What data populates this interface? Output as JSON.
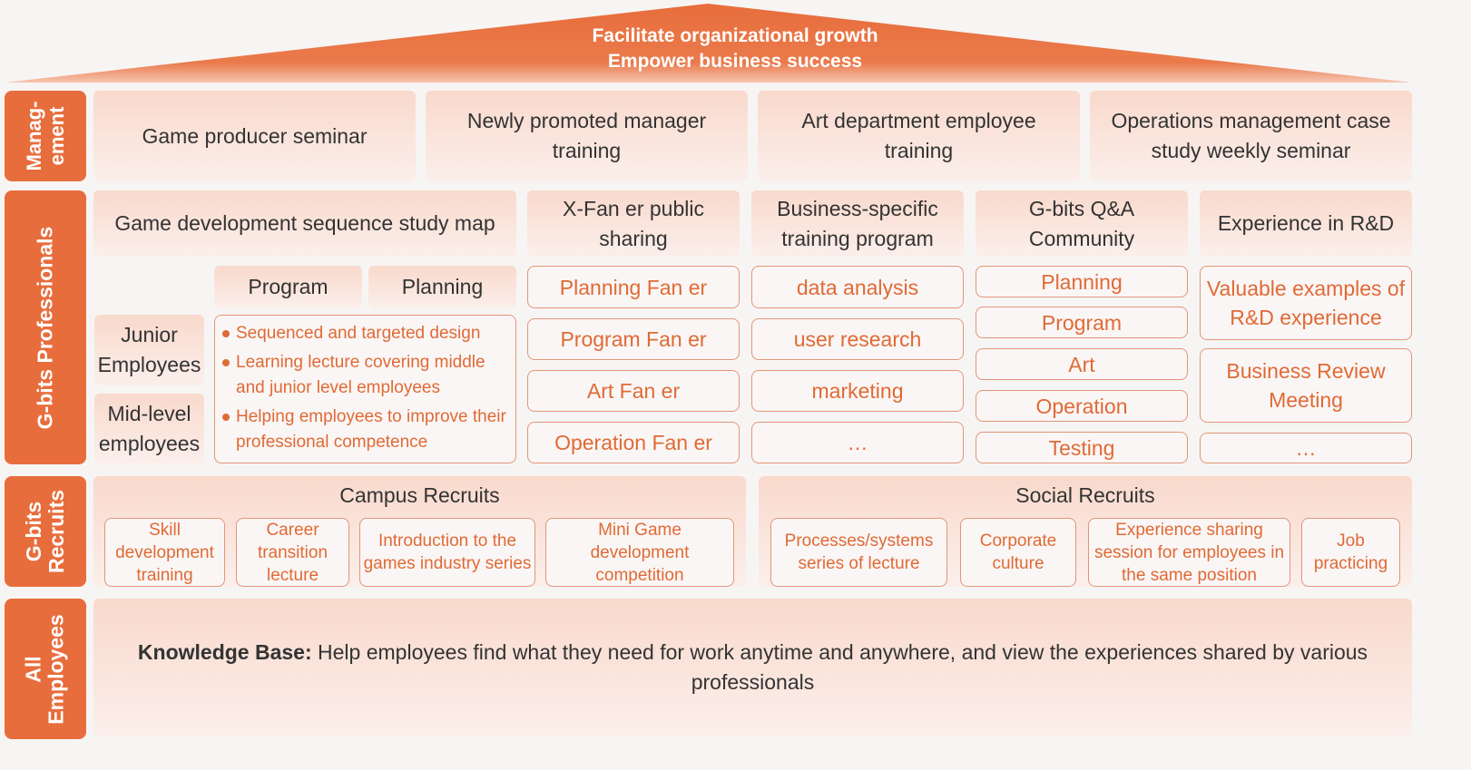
{
  "roof": {
    "line1": "Facilitate organizational growth",
    "line2": "Empower business success",
    "color": "#e86d3c"
  },
  "sides": {
    "management": "Manag- ement",
    "professionals": "G-bits Professionals",
    "recruits": "G-bits Recruits",
    "all": "All Employees"
  },
  "management": [
    "Game producer seminar",
    "Newly promoted manager training",
    "Art department employee training",
    "Operations management case study weekly seminar"
  ],
  "professionals": {
    "headers": [
      "Game development sequence study map",
      "X-Fan er public sharing",
      "Business-specific training program",
      "G-bits Q&A Community",
      "Experience in R&D"
    ],
    "study_map": {
      "program": "Program",
      "planning": "Planning",
      "junior": "Junior Employees",
      "mid": "Mid-level employees",
      "bullets": [
        "Sequenced and targeted design",
        "Learning lecture covering middle and junior level employees",
        "Helping employees to improve their professional competence"
      ]
    },
    "fan": [
      "Planning Fan er",
      "Program Fan er",
      "Art Fan er",
      "Operation Fan er"
    ],
    "business": [
      "data analysis",
      "user research",
      "marketing",
      "…"
    ],
    "qa": [
      "Planning",
      "Program",
      "Art",
      "Operation",
      "Testing"
    ],
    "rd": [
      "Valuable examples of R&D experience",
      "Business Review Meeting",
      "…"
    ]
  },
  "recruits": {
    "campus": {
      "title": "Campus Recruits",
      "items": [
        "Skill development training",
        "Career transition lecture",
        "Introduction to the games industry series",
        "Mini Game development competition"
      ]
    },
    "social": {
      "title": "Social Recruits",
      "items": [
        "Processes/systems series of lecture",
        "Corporate culture",
        "Experience sharing session for employees in the same position",
        "Job practicing"
      ]
    }
  },
  "all_employees": {
    "label": "Knowledge Base:",
    "text": " Help employees find what they need for work anytime and anywhere, and view the experiences shared by various professionals"
  }
}
